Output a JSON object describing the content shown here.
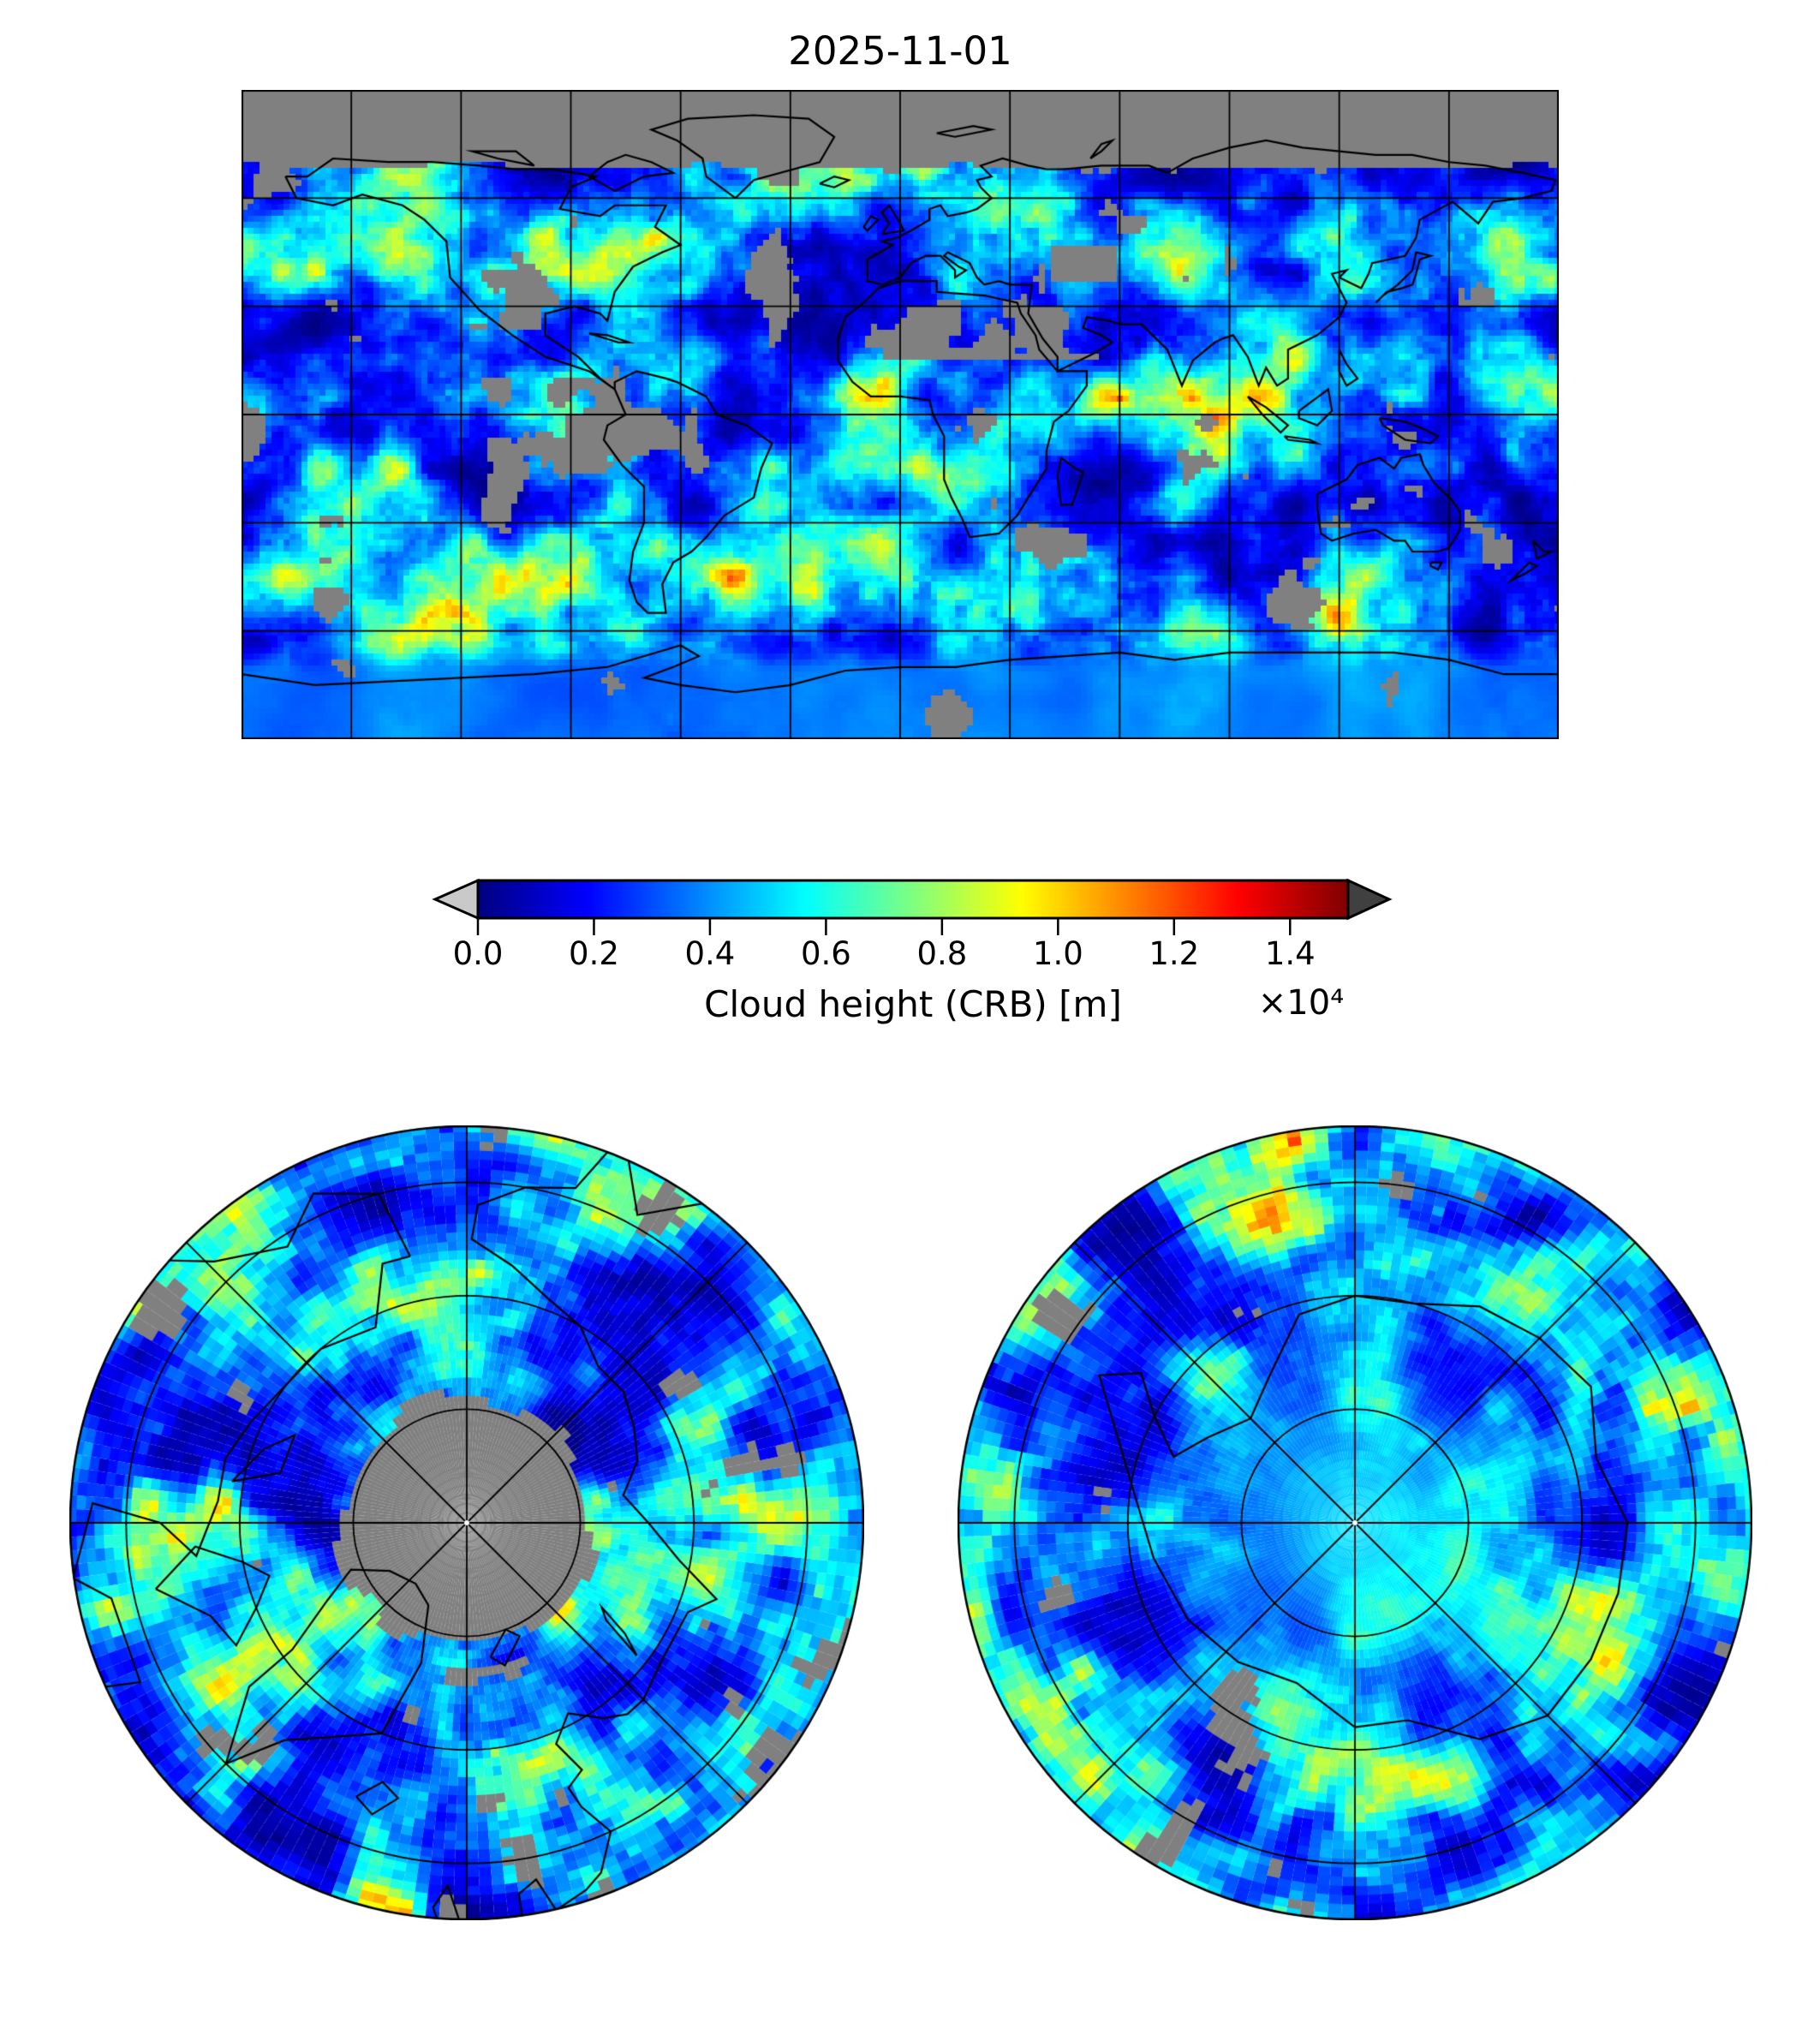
{
  "title": "2025-11-01",
  "colorbar": {
    "label": "Cloud height (CRB) [m]",
    "offset_text": "×10⁴",
    "tick_labels": [
      "0.0",
      "0.2",
      "0.4",
      "0.6",
      "0.8",
      "1.0",
      "1.2",
      "1.4"
    ],
    "tick_values_m": [
      0,
      2000,
      4000,
      6000,
      8000,
      10000,
      12000,
      14000
    ],
    "vmin_m": 0,
    "vmax_m": 15000,
    "colormap": "jet",
    "under_arrow_color": "#c9c9c9",
    "over_arrow_color": "#404040",
    "outline_color": "#000000"
  },
  "chart_data": {
    "type": "heatmap",
    "title": "2025-11-01",
    "variable": "Cloud height (CRB) [m]",
    "colormap": "jet",
    "value_range_m": [
      0,
      15000
    ],
    "colorbar_ticks": [
      0.0,
      0.2,
      0.4,
      0.6,
      0.8,
      1.0,
      1.2,
      1.4
    ],
    "colorbar_offset_scale": "×10⁴",
    "no_data_color": "#808080",
    "coastline_color": "#000000",
    "gridline_color": "#000000",
    "panels": [
      {
        "name": "global",
        "projection": "equirectangular",
        "lon_range": [
          -180,
          180
        ],
        "lat_range": [
          -90,
          90
        ],
        "gridline_spacing_deg": {
          "lon": 30,
          "lat": 30
        },
        "no_data_features": "solid gray band poleward of ~67N (polar night) and scattered gray no-data patches over deserts (Sahara, Arabia, Australia, SW North America, Greenland)",
        "field_summary": "mostly low blue cloud heights (~1-3 km) over oceans with cyan/green/yellow bands (6-10 km) along ITCZ and mid-latitude storm tracks, rare orange/red cells (>11 km); smooth pale-blue low cloud over Antarctica"
      },
      {
        "name": "north-polar",
        "projection": "azimuthal-equidistant",
        "center": "North Pole",
        "lat_limit_deg": 55,
        "lat_rings_deg": [
          80,
          70,
          60
        ],
        "lon_spoke_spacing_deg": 45,
        "no_data_features": "solid gray cap poleward of ~80N; scattered gray patches near rim",
        "field_summary": "blue background with cyan/yellow frontal streaks spiraling around the pole"
      },
      {
        "name": "south-polar",
        "projection": "azimuthal-equidistant",
        "center": "South Pole",
        "lat_limit_deg": -55,
        "lat_rings_deg": [
          -80,
          -70,
          -60
        ],
        "lon_spoke_spacing_deg": 45,
        "no_data_features": "few scattered gray patches near rim",
        "field_summary": "deep-blue storm field with smooth pale cyan low cloud over the Antarctic interior; Antarctica coastline outlined"
      }
    ]
  }
}
